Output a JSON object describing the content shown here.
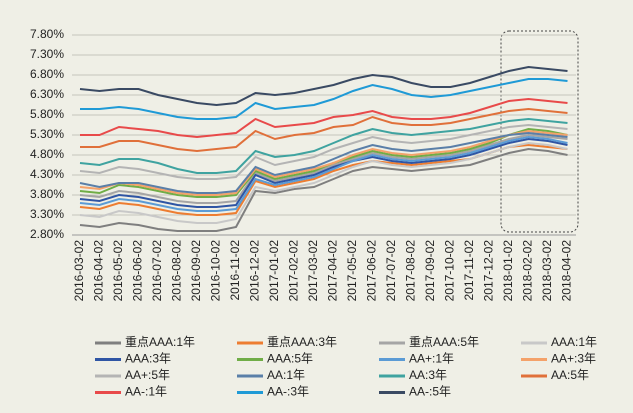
{
  "chart_data": {
    "type": "line",
    "categories": [
      "2016-03-02",
      "2016-04-02",
      "2016-05-02",
      "2016-06-02",
      "2016-07-02",
      "2016-08-02",
      "2016-09-02",
      "2016-10-02",
      "2016-11-02",
      "2016-12-02",
      "2017-01-02",
      "2017-02-02",
      "2017-03-02",
      "2017-04-02",
      "2017-05-02",
      "2017-06-02",
      "2017-07-02",
      "2017-08-02",
      "2017-09-02",
      "2017-10-02",
      "2017-11-02",
      "2017-12-02",
      "2018-01-02",
      "2018-02-02",
      "2018-03-02",
      "2018-04-02"
    ],
    "ylim": [
      2.8,
      7.8
    ],
    "yticks": [
      {
        "value": 2.8,
        "label": "2.80%"
      },
      {
        "value": 3.3,
        "label": "3.30%"
      },
      {
        "value": 3.8,
        "label": "3.80%"
      },
      {
        "value": 4.3,
        "label": "4.30%"
      },
      {
        "value": 4.8,
        "label": "4.80%"
      },
      {
        "value": 5.3,
        "label": "5.30%"
      },
      {
        "value": 5.8,
        "label": "5.80%"
      },
      {
        "value": 6.3,
        "label": "6.30%"
      },
      {
        "value": 6.8,
        "label": "6.80%"
      },
      {
        "value": 7.3,
        "label": "7.30%"
      },
      {
        "value": 7.8,
        "label": "7.80%"
      }
    ],
    "grid": true,
    "legend": "bottom",
    "series": [
      {
        "name": "重点AAA:1年",
        "color": "#7f7f7f",
        "values": [
          3.05,
          3.0,
          3.1,
          3.05,
          2.95,
          2.9,
          2.9,
          2.9,
          3.0,
          3.9,
          3.85,
          3.95,
          4.0,
          4.2,
          4.4,
          4.5,
          4.45,
          4.4,
          4.45,
          4.5,
          4.55,
          4.7,
          4.85,
          4.95,
          4.9,
          4.8
        ]
      },
      {
        "name": "重点AAA:3年",
        "color": "#ed7d31",
        "values": [
          3.5,
          3.45,
          3.6,
          3.55,
          3.45,
          3.35,
          3.3,
          3.3,
          3.35,
          4.15,
          4.0,
          4.1,
          4.2,
          4.4,
          4.55,
          4.65,
          4.6,
          4.55,
          4.6,
          4.65,
          4.7,
          4.85,
          5.0,
          5.05,
          5.0,
          4.95
        ]
      },
      {
        "name": "重点AAA:5年",
        "color": "#a5a5a5",
        "values": [
          3.8,
          3.75,
          3.9,
          3.85,
          3.75,
          3.65,
          3.6,
          3.6,
          3.65,
          4.35,
          4.15,
          4.25,
          4.35,
          4.55,
          4.7,
          4.85,
          4.75,
          4.7,
          4.75,
          4.8,
          4.9,
          5.05,
          5.2,
          5.3,
          5.25,
          5.2
        ]
      },
      {
        "name": "AAA:1年",
        "color": "#c8c8c8",
        "values": [
          3.3,
          3.25,
          3.4,
          3.35,
          3.25,
          3.15,
          3.1,
          3.1,
          3.2,
          4.0,
          3.9,
          4.0,
          4.1,
          4.3,
          4.5,
          4.65,
          4.55,
          4.5,
          4.55,
          4.6,
          4.7,
          4.85,
          5.0,
          5.1,
          5.05,
          4.95
        ]
      },
      {
        "name": "AAA:3年",
        "color": "#2f55a4",
        "values": [
          3.7,
          3.65,
          3.8,
          3.75,
          3.65,
          3.55,
          3.5,
          3.5,
          3.55,
          4.3,
          4.1,
          4.2,
          4.3,
          4.5,
          4.65,
          4.75,
          4.65,
          4.6,
          4.65,
          4.7,
          4.8,
          4.95,
          5.1,
          5.2,
          5.15,
          5.05
        ]
      },
      {
        "name": "AAA:5年",
        "color": "#70ad47",
        "values": [
          3.9,
          3.85,
          4.05,
          4.0,
          3.9,
          3.8,
          3.75,
          3.75,
          3.8,
          4.4,
          4.2,
          4.3,
          4.4,
          4.6,
          4.75,
          4.9,
          4.8,
          4.75,
          4.8,
          4.85,
          4.95,
          5.1,
          5.3,
          5.45,
          5.4,
          5.3
        ]
      },
      {
        "name": "AA+:1年",
        "color": "#5b9bd5",
        "values": [
          3.6,
          3.55,
          3.7,
          3.65,
          3.55,
          3.45,
          3.4,
          3.4,
          3.45,
          4.2,
          4.05,
          4.15,
          4.25,
          4.45,
          4.65,
          4.8,
          4.7,
          4.65,
          4.7,
          4.75,
          4.85,
          5.0,
          5.15,
          5.25,
          5.2,
          5.1
        ]
      },
      {
        "name": "AA+:3年",
        "color": "#f4a26a",
        "values": [
          4.0,
          3.95,
          4.1,
          4.05,
          3.95,
          3.85,
          3.8,
          3.8,
          3.85,
          4.45,
          4.25,
          4.35,
          4.45,
          4.6,
          4.8,
          4.95,
          4.85,
          4.8,
          4.85,
          4.9,
          5.0,
          5.15,
          5.3,
          5.4,
          5.35,
          5.3
        ]
      },
      {
        "name": "AA+:5年",
        "color": "#b4b4b4",
        "values": [
          4.4,
          4.35,
          4.5,
          4.45,
          4.35,
          4.25,
          4.2,
          4.2,
          4.25,
          4.75,
          4.55,
          4.65,
          4.75,
          4.95,
          5.1,
          5.25,
          5.15,
          5.1,
          5.15,
          5.2,
          5.3,
          5.4,
          5.5,
          5.55,
          5.5,
          5.45
        ]
      },
      {
        "name": "AA:1年",
        "color": "#5a7fa8",
        "values": [
          4.1,
          4.0,
          4.1,
          4.1,
          4.0,
          3.9,
          3.85,
          3.85,
          3.9,
          4.5,
          4.3,
          4.4,
          4.5,
          4.7,
          4.9,
          5.05,
          4.95,
          4.9,
          4.95,
          5.0,
          5.1,
          5.2,
          5.3,
          5.35,
          5.3,
          5.25
        ]
      },
      {
        "name": "AA:3年",
        "color": "#3fa3a0",
        "values": [
          4.6,
          4.55,
          4.7,
          4.7,
          4.6,
          4.45,
          4.35,
          4.35,
          4.4,
          4.9,
          4.75,
          4.8,
          4.9,
          5.1,
          5.3,
          5.45,
          5.35,
          5.3,
          5.35,
          5.4,
          5.45,
          5.55,
          5.65,
          5.7,
          5.65,
          5.6
        ]
      },
      {
        "name": "AA:5年",
        "color": "#e0703a",
        "values": [
          5.0,
          5.0,
          5.15,
          5.15,
          5.05,
          4.95,
          4.9,
          4.95,
          5.0,
          5.4,
          5.2,
          5.3,
          5.35,
          5.5,
          5.55,
          5.75,
          5.6,
          5.55,
          5.55,
          5.6,
          5.7,
          5.8,
          5.9,
          5.95,
          5.9,
          5.85
        ]
      },
      {
        "name": "AA-:1年",
        "color": "#e84a4a",
        "values": [
          5.3,
          5.3,
          5.5,
          5.45,
          5.4,
          5.3,
          5.25,
          5.3,
          5.35,
          5.7,
          5.5,
          5.55,
          5.6,
          5.75,
          5.8,
          5.9,
          5.75,
          5.7,
          5.7,
          5.75,
          5.85,
          6.0,
          6.15,
          6.2,
          6.15,
          6.1
        ]
      },
      {
        "name": "AA-:3年",
        "color": "#1f9ad6",
        "values": [
          5.95,
          5.95,
          6.0,
          5.95,
          5.85,
          5.75,
          5.7,
          5.7,
          5.75,
          6.1,
          5.95,
          6.0,
          6.05,
          6.2,
          6.4,
          6.55,
          6.45,
          6.3,
          6.25,
          6.3,
          6.4,
          6.5,
          6.6,
          6.7,
          6.7,
          6.65
        ]
      },
      {
        "name": "AA-:5年",
        "color": "#3a4a63",
        "values": [
          6.45,
          6.4,
          6.45,
          6.45,
          6.3,
          6.2,
          6.1,
          6.05,
          6.1,
          6.35,
          6.3,
          6.35,
          6.45,
          6.55,
          6.7,
          6.8,
          6.75,
          6.6,
          6.5,
          6.5,
          6.6,
          6.75,
          6.9,
          7.0,
          6.95,
          6.9
        ]
      }
    ]
  }
}
